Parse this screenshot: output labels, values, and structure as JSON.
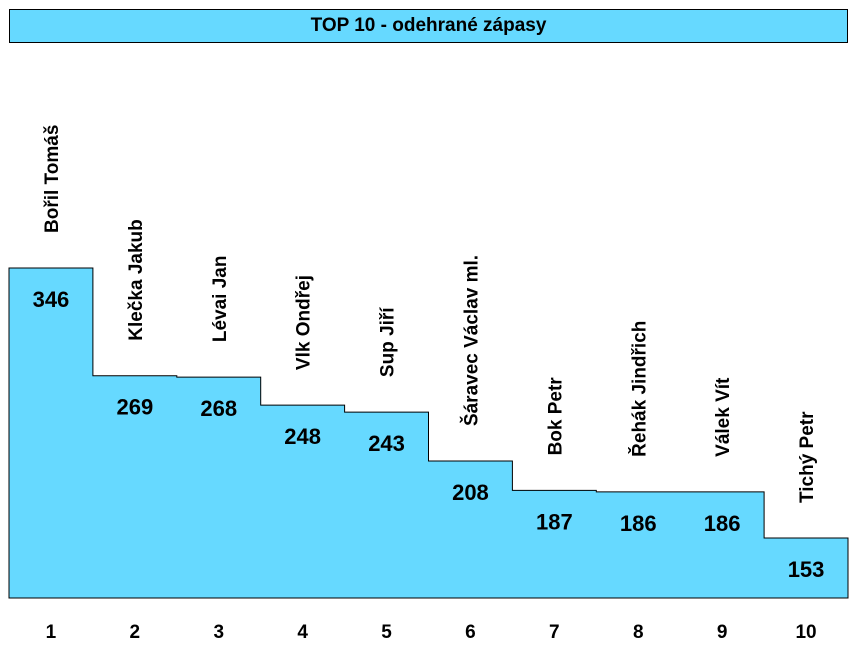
{
  "title": "TOP 10 - odehrané zápasy",
  "colors": {
    "fill": "#66D9FF",
    "stroke": "#000000",
    "text": "#000000"
  },
  "chart_data": {
    "type": "bar",
    "title": "TOP 10 - odehrané zápasy",
    "categories": [
      "1",
      "2",
      "3",
      "4",
      "5",
      "6",
      "7",
      "8",
      "9",
      "10"
    ],
    "names": [
      "Bořil Tomáš",
      "Klečka Jakub",
      "Lévai Jan",
      "Vlk Ondřej",
      "Sup Jiří",
      "Šáravec Václav ml.",
      "Bok Petr",
      "Řehák Jindřich",
      "Válek Vít",
      "Tichý Petr"
    ],
    "values": [
      346,
      269,
      268,
      248,
      243,
      208,
      187,
      186,
      186,
      153
    ],
    "xlabel": "",
    "ylabel": "",
    "grid": false,
    "legend": "none"
  }
}
